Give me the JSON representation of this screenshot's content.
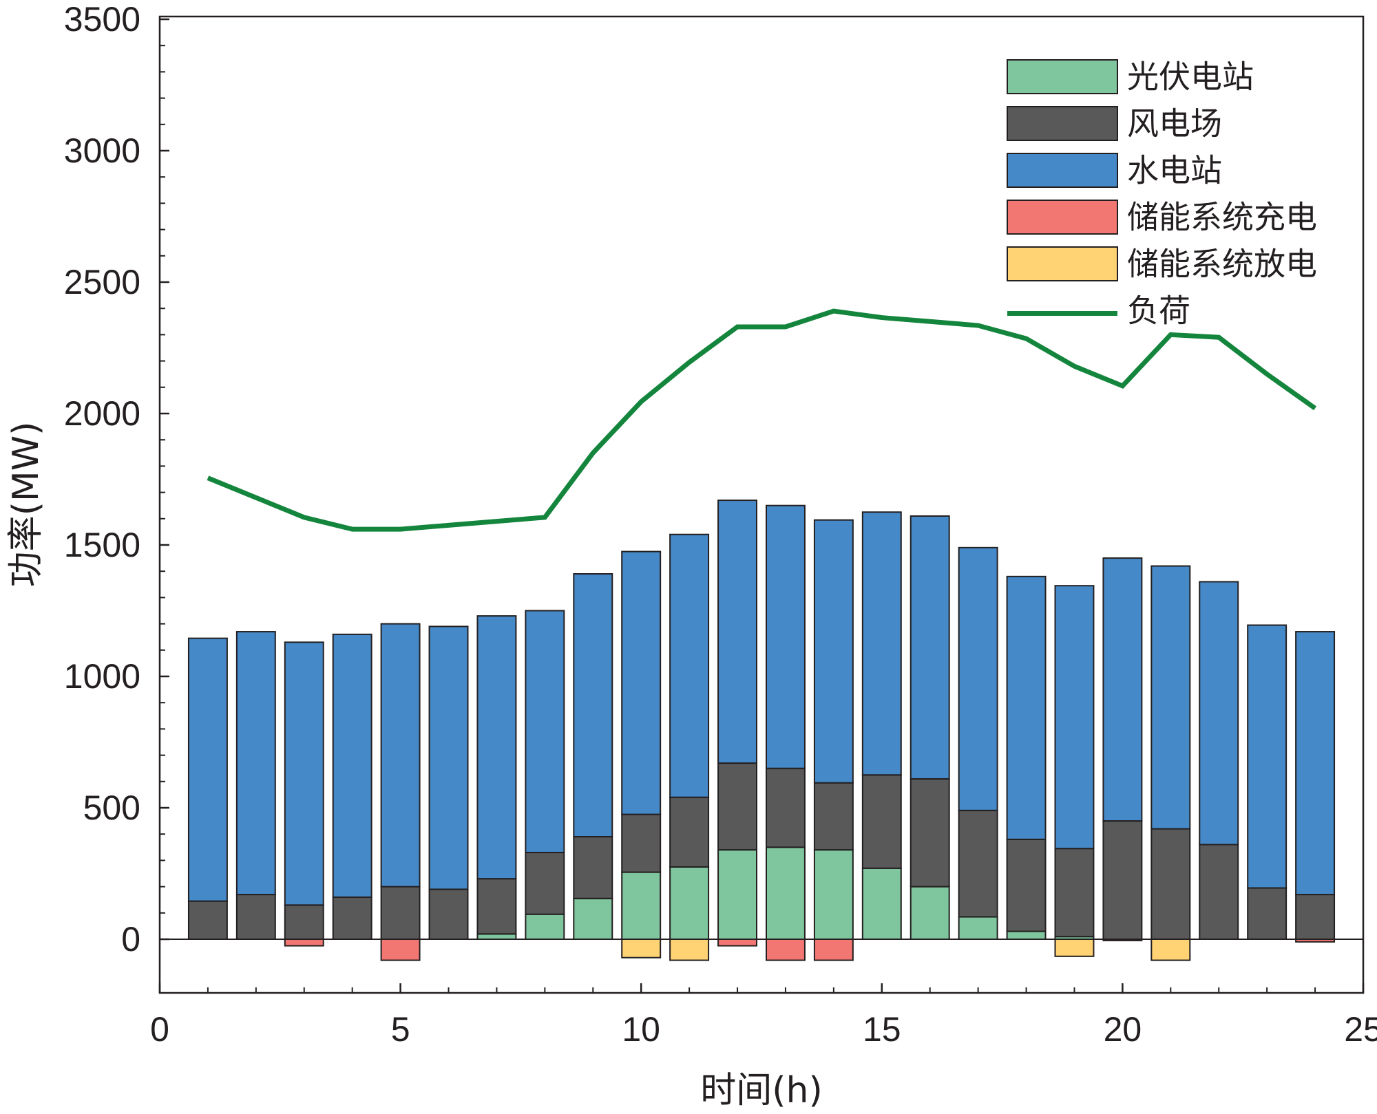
{
  "chart_data": {
    "type": "bar",
    "stacked": true,
    "title": "",
    "xlabel": "时间(h)",
    "ylabel": "功率(MW)",
    "xlim": [
      0,
      25
    ],
    "ylim": [
      -200,
      3500
    ],
    "xticks": [
      0,
      5,
      10,
      15,
      20,
      25
    ],
    "yticks": [
      0,
      500,
      1000,
      1500,
      2000,
      2500,
      3000,
      3500
    ],
    "legend_position": "top-right",
    "x": [
      1,
      2,
      3,
      4,
      5,
      6,
      7,
      8,
      9,
      10,
      11,
      12,
      13,
      14,
      15,
      16,
      17,
      18,
      19,
      20,
      21,
      22,
      23,
      24
    ],
    "series": [
      {
        "name": "光伏电站",
        "color": "#7fc59e",
        "kind": "bar",
        "values": [
          0,
          0,
          0,
          0,
          0,
          0,
          20,
          95,
          155,
          255,
          275,
          340,
          350,
          340,
          270,
          200,
          85,
          30,
          10,
          0,
          0,
          0,
          0,
          0
        ]
      },
      {
        "name": "风电场",
        "color": "#595959",
        "kind": "bar",
        "values": [
          145,
          170,
          130,
          160,
          200,
          190,
          210,
          235,
          235,
          220,
          265,
          330,
          300,
          255,
          355,
          410,
          405,
          350,
          335,
          450,
          420,
          360,
          195,
          170
        ]
      },
      {
        "name": "水电站",
        "color": "#4689c8",
        "kind": "bar",
        "values": [
          1000,
          1000,
          1000,
          1000,
          1000,
          1000,
          1000,
          920,
          1000,
          1000,
          1000,
          1000,
          1000,
          1000,
          1000,
          1000,
          1000,
          1000,
          1000,
          1000,
          1000,
          1000,
          1000,
          1000
        ]
      },
      {
        "name": "储能系统充电",
        "color": "#f27671",
        "kind": "bar",
        "values": [
          0,
          0,
          -25,
          0,
          -80,
          0,
          0,
          0,
          0,
          0,
          0,
          -25,
          -80,
          -80,
          0,
          0,
          0,
          0,
          0,
          0,
          0,
          0,
          0,
          -10
        ]
      },
      {
        "name": "储能系统放电",
        "color": "#ffd374",
        "kind": "bar",
        "values": [
          0,
          0,
          0,
          0,
          0,
          0,
          0,
          0,
          0,
          -70,
          -80,
          0,
          0,
          0,
          0,
          0,
          0,
          0,
          -65,
          -5,
          -80,
          0,
          0,
          0
        ]
      },
      {
        "name": "负荷",
        "color": "#14853c",
        "kind": "line",
        "values": [
          1755,
          1680,
          1605,
          1560,
          1560,
          1575,
          1590,
          1605,
          1850,
          2045,
          2195,
          2330,
          2330,
          2390,
          2365,
          2350,
          2335,
          2285,
          2180,
          2105,
          2300,
          2290,
          2150,
          2020
        ]
      }
    ]
  }
}
